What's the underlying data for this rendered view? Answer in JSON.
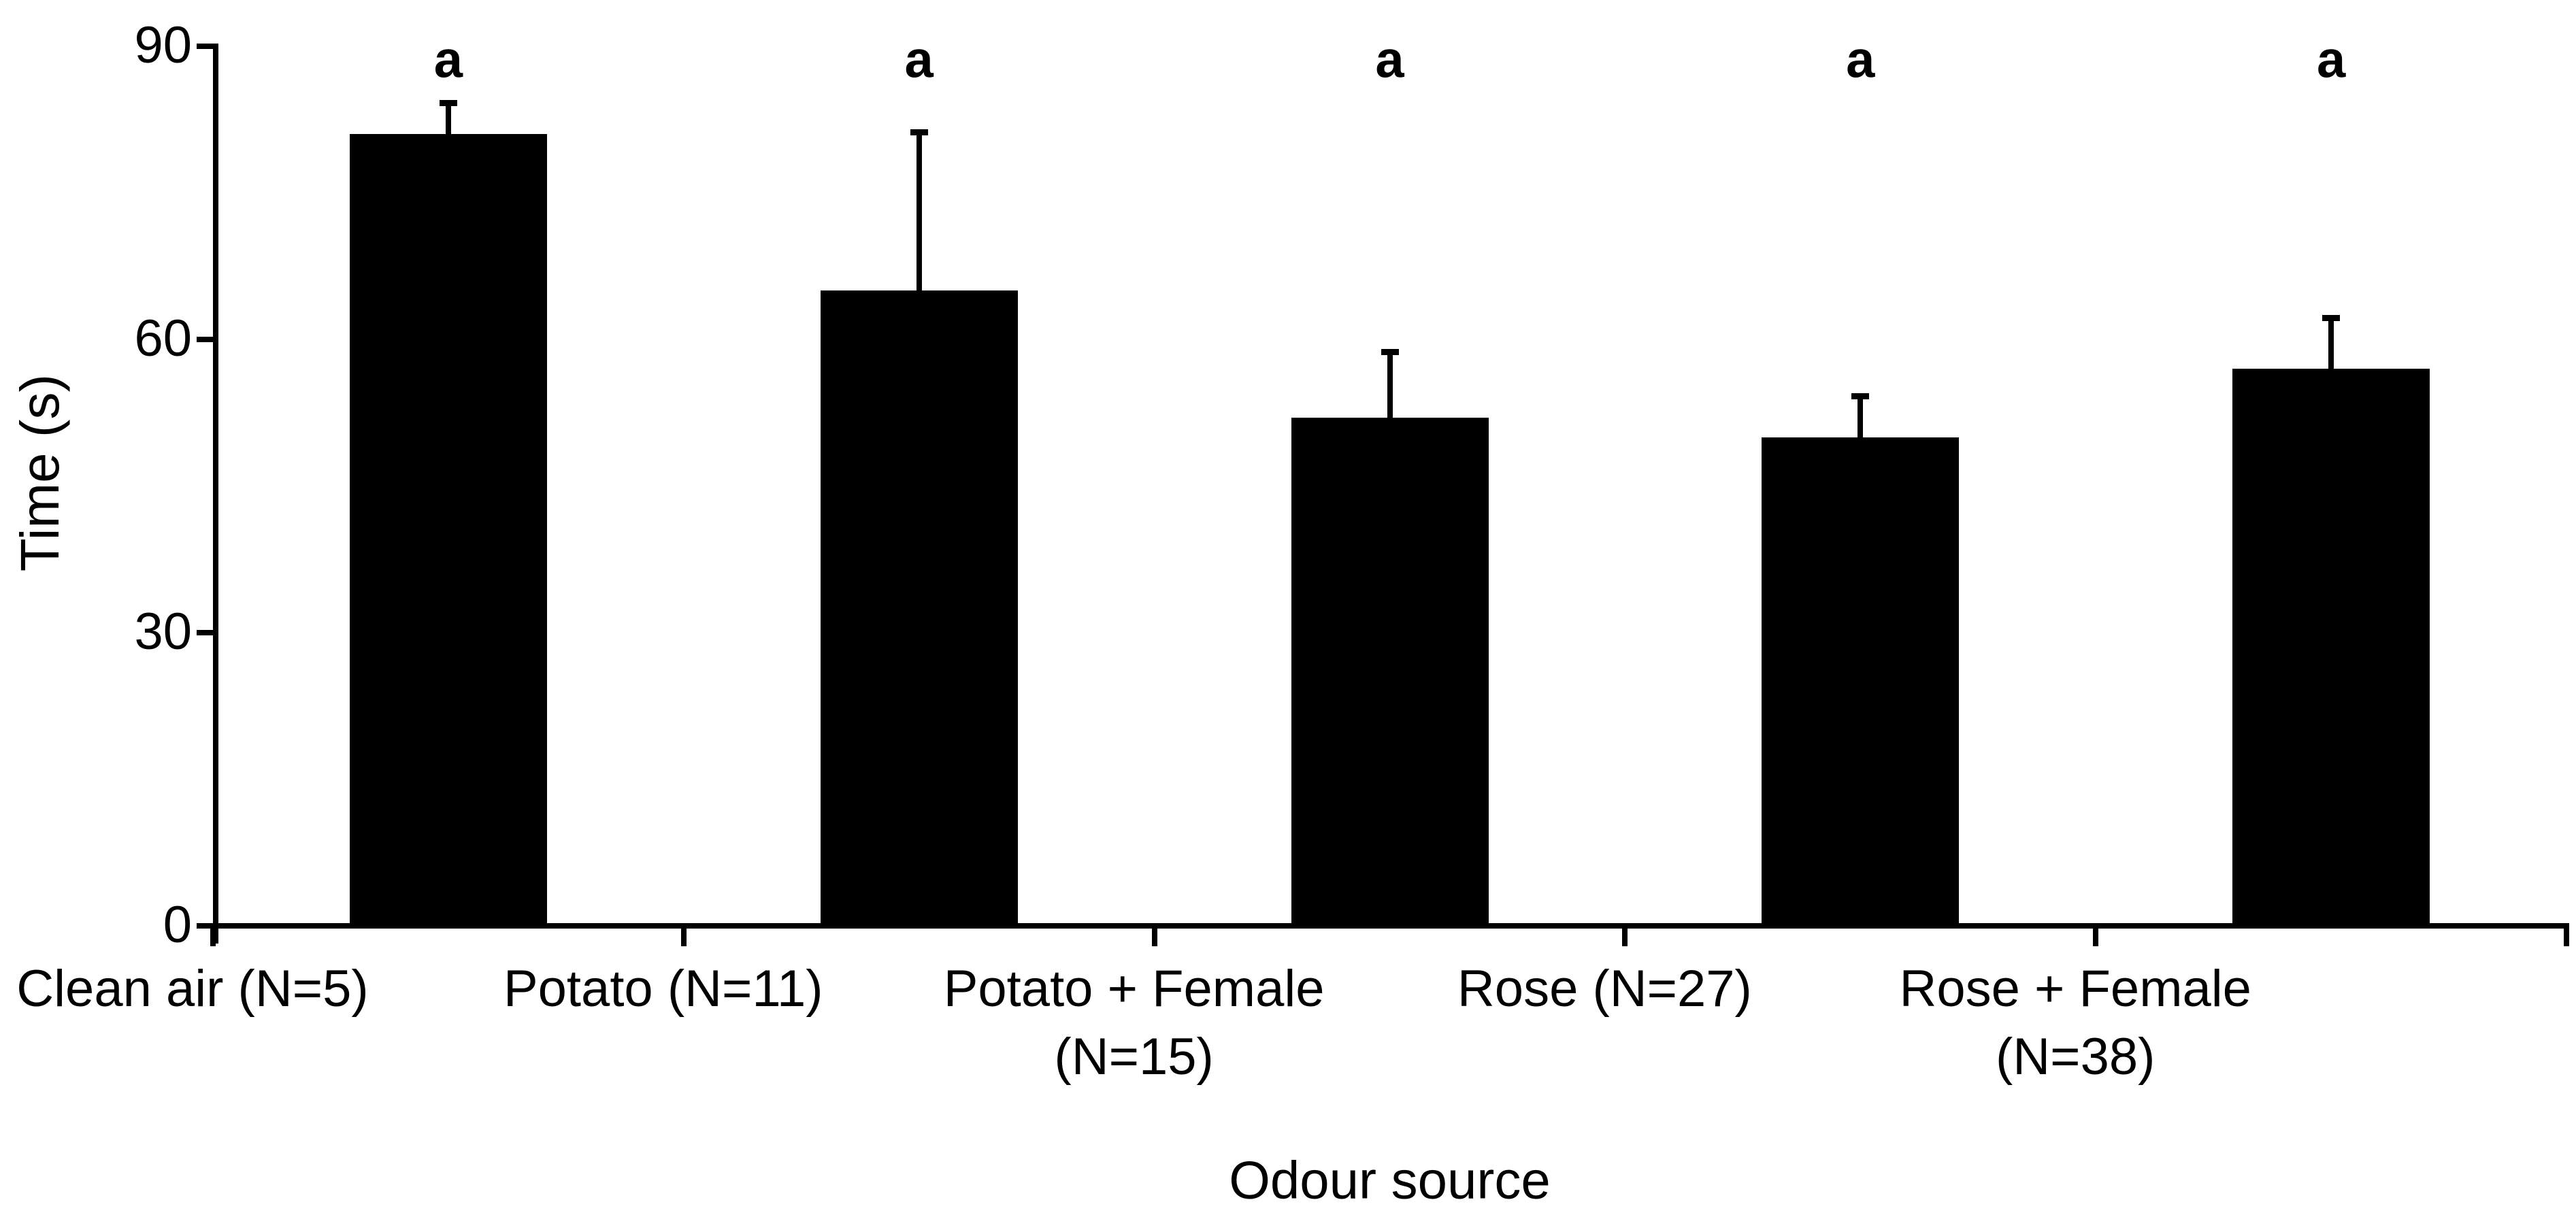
{
  "chart_data": {
    "type": "bar",
    "title": "",
    "xlabel": "Odour source",
    "ylabel": "Time (s)",
    "ylim": [
      0,
      90
    ],
    "yticks": [
      0,
      30,
      60,
      90
    ],
    "categories": [
      "Clean air (N=5)",
      "Potato (N=11)",
      "Potato + Female\n(N=15)",
      "Rose (N=27)",
      "Rose + Female\n(N=38)"
    ],
    "values": [
      81,
      65,
      52,
      50,
      57
    ],
    "errors_plus": [
      3.5,
      16.5,
      7,
      4.5,
      5.5
    ],
    "error_direction": "up",
    "sig_labels": [
      "a",
      "a",
      "a",
      "a",
      "a"
    ],
    "bar_color": "#000000",
    "axis_color": "#000000",
    "text_color": "#000000",
    "background": "#ffffff",
    "grid": false,
    "legend": false
  }
}
